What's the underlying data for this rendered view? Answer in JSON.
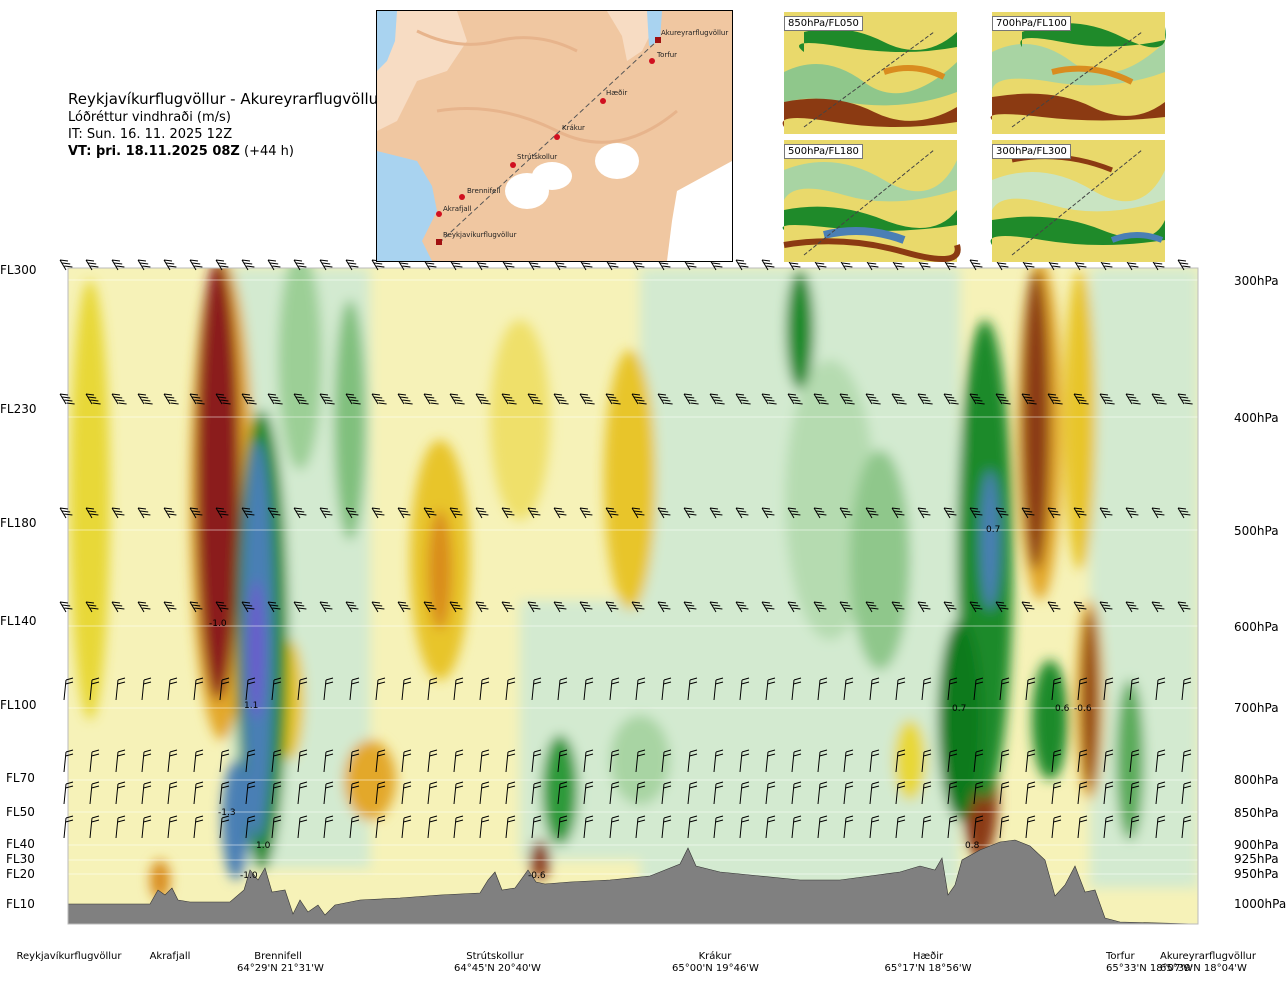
{
  "header": {
    "route": "Reykjavíkurflugvöllur - Akureyrarflugvöllur",
    "parameter": "Lóðréttur vindhraði (m/s)",
    "issue_time": "IT: Sun. 16. 11. 2025 12Z",
    "valid_label": "VT: þri. 18.11.2025 08Z",
    "valid_offset": "(+44 h)"
  },
  "map": {
    "places": [
      {
        "name": "Akureyrarflugvöllur"
      },
      {
        "name": "Torfur"
      },
      {
        "name": "Hæðir"
      },
      {
        "name": "Krákur"
      },
      {
        "name": "Strútskollur"
      },
      {
        "name": "Brennifell"
      },
      {
        "name": "Akrafjall"
      },
      {
        "name": "Reykjavíkurflugvöllur"
      }
    ]
  },
  "thumbnails": [
    {
      "label": "850hPa/FL050"
    },
    {
      "label": "700hPa/FL100"
    },
    {
      "label": "500hPa/FL180"
    },
    {
      "label": "300hPa/FL300"
    }
  ],
  "chart_data": {
    "type": "heatmap",
    "title": "Reykjavíkurflugvöllur - Akureyrarflugvöllur",
    "subtitle": "Lóðréttur vindhraði (m/s)",
    "y_levels_left": [
      "FL300",
      "FL230",
      "FL180",
      "FL140",
      "FL100",
      "FL70",
      "FL50",
      "FL40",
      "FL30",
      "FL20",
      "FL10"
    ],
    "y_levels_right": [
      "300hPa",
      "400hPa",
      "500hPa",
      "600hPa",
      "700hPa",
      "800hPa",
      "850hPa",
      "900hPa",
      "925hPa",
      "950hPa",
      "1000hPa"
    ],
    "locations": [
      {
        "name": "Reykjavíkurflugvöllur",
        "coord": ""
      },
      {
        "name": "Akrafjall",
        "coord": ""
      },
      {
        "name": "Brennifell",
        "coord": "64°29'N 21°31'W"
      },
      {
        "name": "Strútskollur",
        "coord": "64°45'N 20°40'W"
      },
      {
        "name": "Krákur",
        "coord": "65°00'N 19°46'W"
      },
      {
        "name": "Hæðir",
        "coord": "65°17'N 18°56'W"
      },
      {
        "name": "Torfur",
        "coord": "65°33'N 18°07'W"
      },
      {
        "name": "Akureyrarflugvöllur",
        "coord": "65°39'N 18°04'W"
      }
    ],
    "value_labels": [
      {
        "text": "-1.0",
        "location": "Brennifell",
        "level": "FL140"
      },
      {
        "text": "1.1",
        "location": "Brennifell",
        "level": "FL100"
      },
      {
        "text": "-1.3",
        "location": "Brennifell",
        "level": "FL50"
      },
      {
        "text": "1.0",
        "location": "Brennifell",
        "level": "FL40"
      },
      {
        "text": "-1.0",
        "location": "Brennifell",
        "level": "FL20"
      },
      {
        "text": "-0.6",
        "location": "Strútskollur",
        "level": "FL20"
      },
      {
        "text": "0.7",
        "location": "Hæðir",
        "level": "FL180"
      },
      {
        "text": "0.7",
        "location": "Hæðir",
        "level": "FL100"
      },
      {
        "text": "0.6",
        "location": "Torfur",
        "level": "FL100"
      },
      {
        "text": "-0.6",
        "location": "Torfur",
        "level": "FL100"
      },
      {
        "text": "0.8",
        "location": "Hæðir",
        "level": "FL40"
      }
    ],
    "colors": {
      "strong_down": "#8b1a1a",
      "down": "#d98c1f",
      "weak_down": "#e8d837",
      "neutral": "#f6f2b8",
      "weak_up": "#cfe9c9",
      "up": "#66b366",
      "strong_up": "#0e7a1f",
      "very_strong_up": "#4a7fb5",
      "terrain": "#808080"
    }
  }
}
